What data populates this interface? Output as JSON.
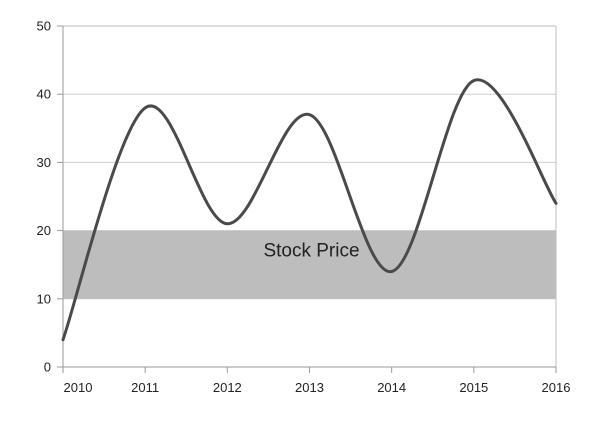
{
  "chart_data": {
    "type": "line",
    "x": [
      2010,
      2011,
      2012,
      2013,
      2014,
      2015,
      2016
    ],
    "x_ticks": [
      "2010",
      "2011",
      "2012",
      "2013",
      "2014",
      "2015",
      "2016"
    ],
    "series": [
      {
        "values": [
          4,
          38,
          21,
          37,
          14,
          42,
          24
        ],
        "color": "#4a4a4a"
      }
    ],
    "xlim": [
      2010,
      2016
    ],
    "ylim": [
      0,
      50
    ],
    "y_ticks": [
      "0",
      "10",
      "20",
      "30",
      "40",
      "50"
    ],
    "y_tick_values": [
      0,
      10,
      20,
      30,
      40,
      50
    ],
    "grid": {
      "horizontal": true,
      "vertical": false,
      "color": "#cfcfcf"
    },
    "band": {
      "from": 10,
      "to": 20,
      "label": "Stock Price",
      "color": "#bdbdbd"
    },
    "axis_color": "#9a9a9a",
    "legend": "none"
  }
}
